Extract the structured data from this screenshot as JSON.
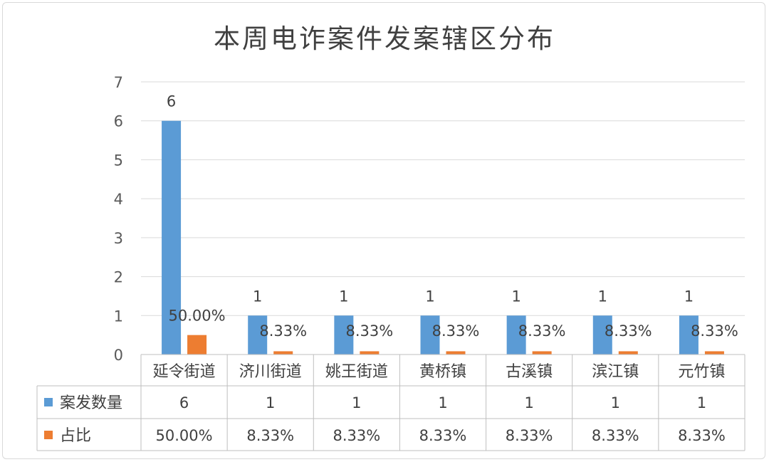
{
  "chart_data": {
    "type": "bar",
    "title": "本周电诈案件发案辖区分布",
    "categories": [
      "延令街道",
      "济川街道",
      "姚王街道",
      "黄桥镇",
      "古溪镇",
      "滨江镇",
      "元竹镇"
    ],
    "series": [
      {
        "name": "案发数量",
        "color": "#5b9bd5",
        "values": [
          6,
          1,
          1,
          1,
          1,
          1,
          1
        ],
        "labels": [
          "6",
          "1",
          "1",
          "1",
          "1",
          "1",
          "1"
        ]
      },
      {
        "name": "占比",
        "color": "#ed7d31",
        "values": [
          0.5,
          0.0833,
          0.0833,
          0.0833,
          0.0833,
          0.0833,
          0.0833
        ],
        "labels": [
          "50.00%",
          "8.33%",
          "8.33%",
          "8.33%",
          "8.33%",
          "8.33%",
          "8.33%"
        ]
      }
    ],
    "ylim": [
      0,
      7
    ],
    "yticks": [
      "0",
      "1",
      "2",
      "3",
      "4",
      "5",
      "6",
      "7"
    ],
    "grid": true,
    "data_table": true,
    "xlabel": "",
    "ylabel": ""
  }
}
